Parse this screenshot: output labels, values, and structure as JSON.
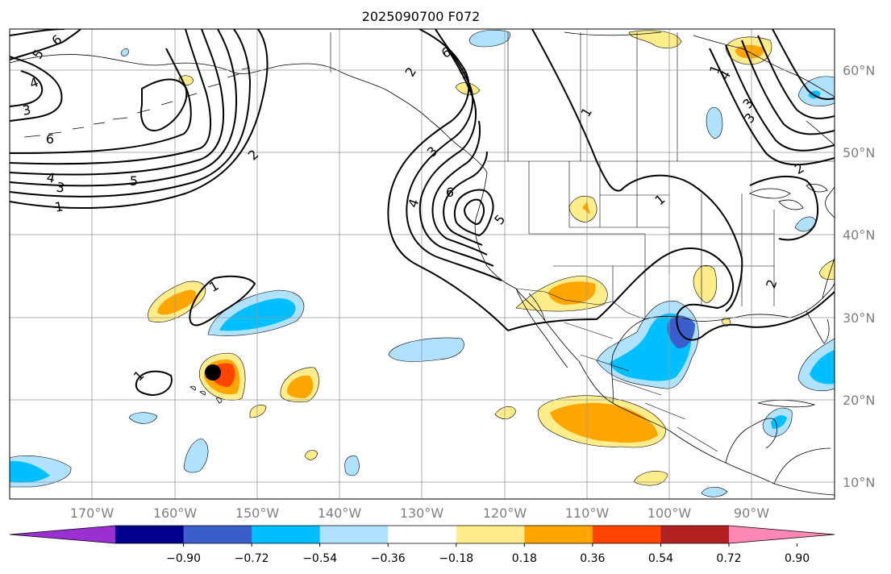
{
  "title": "2025090700 F072",
  "map": {
    "lon_labels": [
      "170°W",
      "160°W",
      "150°W",
      "140°W",
      "130°W",
      "120°W",
      "110°W",
      "100°W",
      "90°W"
    ],
    "lat_labels": [
      "60°N",
      "50°N",
      "40°N",
      "30°N",
      "20°N",
      "10°N"
    ],
    "contour_labels": [
      "6",
      "5",
      "4",
      "3",
      "6",
      "2",
      "5",
      "4",
      "3",
      "1",
      "1",
      "1",
      "2",
      "5",
      "6",
      "3",
      "4",
      "6",
      "5",
      "1",
      "1",
      "1",
      "2",
      "2",
      "3",
      "3",
      "4"
    ],
    "marker": "storm-center"
  },
  "colorbar": {
    "ticks": [
      "−0.90",
      "−0.72",
      "−0.54",
      "−0.36",
      "−0.18",
      "0.18",
      "0.36",
      "0.54",
      "0.72",
      "0.90"
    ],
    "colors": [
      "#9b30d2",
      "#00008b",
      "#3a5fcd",
      "#00bfff",
      "#b0e2ff",
      "#ffffff",
      "#ffec8b",
      "#ffa500",
      "#ff4500",
      "#b22222",
      "#ff87b3"
    ]
  }
}
